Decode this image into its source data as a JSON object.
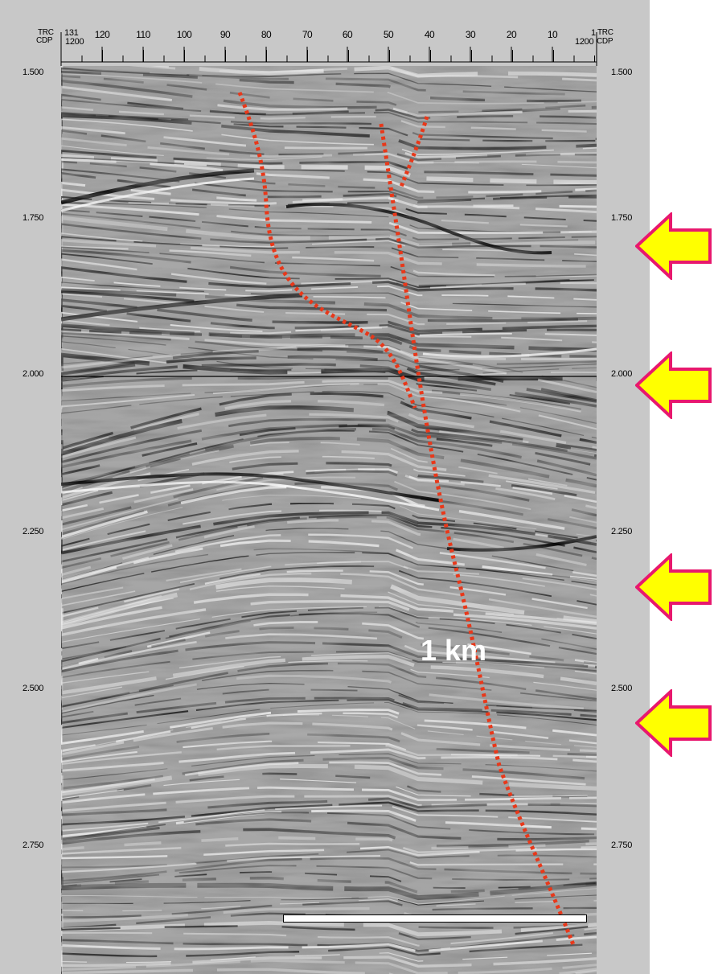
{
  "header": {
    "left_trc": "TRC",
    "left_cdp": "CDP",
    "left_trc_value": "131",
    "left_cdp_value": "1200",
    "right_trc": "TRC",
    "right_cdp": "CDP",
    "right_trc_value": "1",
    "right_cdp_value": "1200"
  },
  "trace_ticks": [
    "120",
    "110",
    "100",
    "90",
    "80",
    "70",
    "60",
    "50",
    "40",
    "30",
    "20",
    "10"
  ],
  "time_labels": [
    "1.500",
    "1.750",
    "2.000",
    "2.250",
    "2.500",
    "2.750"
  ],
  "scale": {
    "label": "1 km"
  },
  "colors": {
    "fault": "#e8381a",
    "arrow_fill": "#ffff00",
    "arrow_stroke": "#e8186e",
    "background": "#c8c8c8"
  },
  "arrows": [
    "arrow-left-icon",
    "arrow-left-icon",
    "arrow-left-icon",
    "arrow-left-icon"
  ]
}
